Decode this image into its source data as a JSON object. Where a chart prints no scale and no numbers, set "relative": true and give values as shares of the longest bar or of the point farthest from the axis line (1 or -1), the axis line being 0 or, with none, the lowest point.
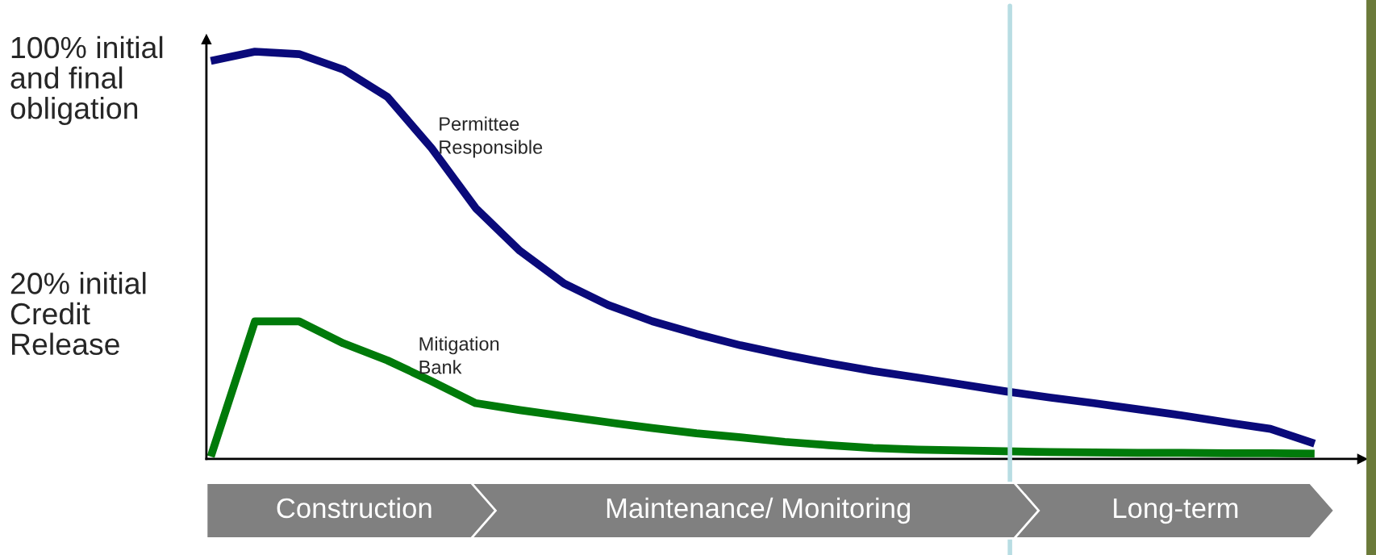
{
  "chart_data": {
    "type": "line",
    "relative": true,
    "categories": [
      null,
      null,
      null,
      null,
      null,
      null,
      null,
      null,
      null,
      null,
      null,
      null,
      null,
      null,
      null,
      null,
      null,
      null,
      null,
      null,
      null,
      null,
      null,
      null,
      null,
      null
    ],
    "series": [
      {
        "name": "Permittee\nResponsible",
        "color": "#0a0a7a",
        "values": [
          0.977,
          1,
          0.994,
          0.956,
          0.889,
          0.763,
          0.616,
          0.511,
          0.431,
          0.378,
          0.338,
          0.307,
          0.279,
          0.256,
          0.235,
          0.216,
          0.2,
          0.183,
          0.166,
          0.151,
          0.137,
          0.122,
          0.107,
          0.09,
          0.074,
          0.038
        ]
      },
      {
        "name": "Mitigation\nBank",
        "color": "#007a0a",
        "values": [
          0.006,
          0.338,
          0.338,
          0.284,
          0.242,
          0.191,
          0.137,
          0.12,
          0.105,
          0.09,
          0.076,
          0.063,
          0.053,
          0.042,
          0.034,
          0.027,
          0.023,
          0.021,
          0.019,
          0.017,
          0.016,
          0.015,
          0.015,
          0.014,
          0.014,
          0.013
        ]
      }
    ],
    "annotations": [
      "100% initial\nand final\nobligation",
      "20% initial\nCredit\nRelease",
      "Construction",
      "Maintenance/ Monitoring",
      "Long-term"
    ],
    "line_style": "solid",
    "marker": "none",
    "legend": false
  }
}
